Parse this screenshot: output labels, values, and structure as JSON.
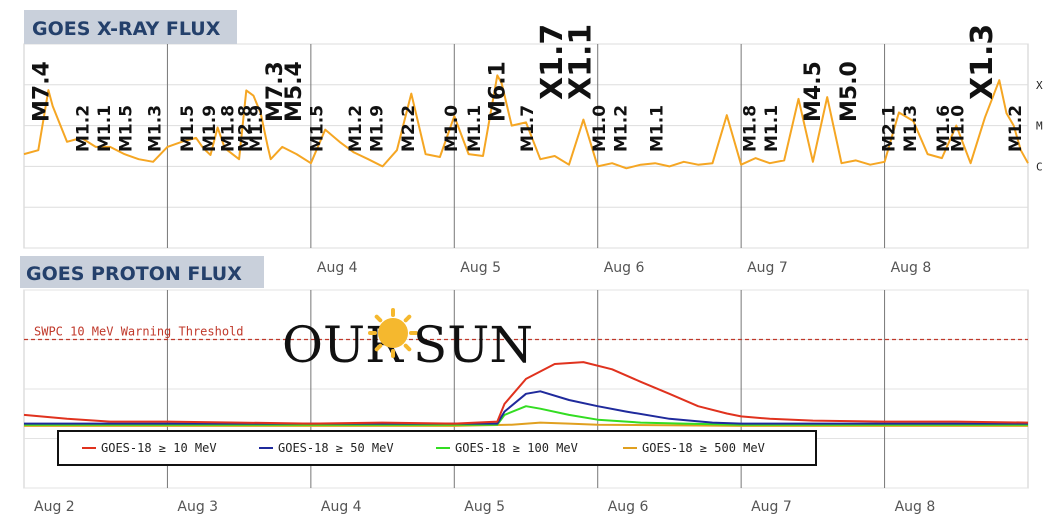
{
  "chart_data": [
    {
      "type": "line",
      "title": "GOES X-RAY FLUX",
      "x_labels": [
        "Aug 4",
        "Aug 5",
        "Aug 6",
        "Aug 7",
        "Aug 8"
      ],
      "y_scale": "log",
      "class_labels": [
        "X",
        "M",
        "C"
      ],
      "grid": true,
      "series": [
        {
          "color": "#f5a623",
          "x": [
            2.0,
            2.1,
            2.17,
            2.2,
            2.3,
            2.4,
            2.5,
            2.6,
            2.7,
            2.8,
            2.9,
            3.0,
            3.1,
            3.2,
            3.25,
            3.3,
            3.35,
            3.4,
            3.5,
            3.55,
            3.6,
            3.65,
            3.7,
            3.72,
            3.8,
            3.9,
            4.0,
            4.1,
            4.2,
            4.3,
            4.4,
            4.5,
            4.6,
            4.7,
            4.8,
            4.9,
            5.0,
            5.1,
            5.2,
            5.3,
            5.33,
            5.4,
            5.5,
            5.6,
            5.7,
            5.8,
            5.9,
            6.0,
            6.1,
            6.2,
            6.3,
            6.4,
            6.5,
            6.6,
            6.7,
            6.8,
            6.9,
            7.0,
            7.1,
            7.2,
            7.3,
            7.4,
            7.5,
            7.6,
            7.7,
            7.8,
            7.9,
            8.0,
            8.1,
            8.2,
            8.3,
            8.4,
            8.5,
            8.6,
            8.7,
            8.8,
            8.85,
            8.9,
            8.95,
            9.0
          ],
          "y": [
            2e-06,
            2.5e-06,
            7.4e-05,
            3e-05,
            4e-06,
            5e-06,
            3e-06,
            3e-06,
            2e-06,
            1.5e-06,
            1.3e-06,
            3e-06,
            4e-06,
            5e-06,
            2.8e-06,
            1.9e-06,
            9e-06,
            2.8e-06,
            1.5e-06,
            7.3e-05,
            5.4e-05,
            2e-05,
            3e-06,
            1.5e-06,
            3e-06,
            2e-06,
            1.2e-06,
            8e-06,
            4e-06,
            2.2e-06,
            1.5e-06,
            1e-06,
            2.5e-06,
            6.1e-05,
            2e-06,
            1.7e-06,
            1.7e-05,
            2e-06,
            1.8e-06,
            0.00017,
            0.00011,
            1e-05,
            1.2e-05,
            1.5e-06,
            1.8e-06,
            1.1e-06,
            1.4e-05,
            1e-06,
            1.2e-06,
            9e-07,
            1.1e-06,
            1.2e-06,
            1e-06,
            1.3e-06,
            1.1e-06,
            1.2e-06,
            1.8e-05,
            1.1e-06,
            1.6e-06,
            1.2e-06,
            1.4e-06,
            4.5e-05,
            1.3e-06,
            5e-05,
            1.2e-06,
            1.4e-06,
            1.1e-06,
            1.3e-06,
            2.1e-05,
            1.3e-05,
            2e-06,
            1.6e-06,
            1e-05,
            1.2e-06,
            1.6e-05,
            0.00013,
            2e-05,
            1e-05,
            2.5e-06,
            1.2e-06
          ]
        }
      ],
      "flare_labels": [
        {
          "label": "M7.4",
          "x": 2.17
        },
        {
          "label": "M1.2",
          "x": 2.45
        },
        {
          "label": "M1.1",
          "x": 2.6
        },
        {
          "label": "M1.5",
          "x": 2.75
        },
        {
          "label": "M1.3",
          "x": 2.95
        },
        {
          "label": "M1.5",
          "x": 3.18
        },
        {
          "label": "M1.9",
          "x": 3.33
        },
        {
          "label": "M1.8",
          "x": 3.46
        },
        {
          "label": "M2.8",
          "x": 3.58
        },
        {
          "label": "M1.9",
          "x": 3.66
        },
        {
          "label": "M7.3",
          "x": 3.8
        },
        {
          "label": "M5.4",
          "x": 3.93
        },
        {
          "label": "M1.5",
          "x": 4.08
        },
        {
          "label": "M1.2",
          "x": 4.35
        },
        {
          "label": "M1.9",
          "x": 4.5
        },
        {
          "label": "M2.2",
          "x": 4.72
        },
        {
          "label": "M1.0",
          "x": 5.02
        },
        {
          "label": "M1.1",
          "x": 5.18
        },
        {
          "label": "M6.1",
          "x": 5.35
        },
        {
          "label": "M1.7",
          "x": 5.55
        },
        {
          "label": "X1.7",
          "x": 5.75
        },
        {
          "label": "X1.1",
          "x": 5.95
        },
        {
          "label": "M1.0",
          "x": 6.05
        },
        {
          "label": "M1.2",
          "x": 6.2
        },
        {
          "label": "M1.1",
          "x": 6.45
        },
        {
          "label": "M1.8",
          "x": 7.1
        },
        {
          "label": "M1.1",
          "x": 7.25
        },
        {
          "label": "M4.5",
          "x": 7.55
        },
        {
          "label": "M5.0",
          "x": 7.8
        },
        {
          "label": "M2.1",
          "x": 8.07
        },
        {
          "label": "M1.3",
          "x": 8.22
        },
        {
          "label": "M1.6",
          "x": 8.45
        },
        {
          "label": "M1.0",
          "x": 8.55
        },
        {
          "label": "X1.3",
          "x": 8.75
        },
        {
          "label": "M1.2",
          "x": 8.95
        }
      ]
    },
    {
      "type": "line",
      "title": "GOES PROTON FLUX",
      "x_labels": [
        "Aug 2",
        "Aug 3",
        "Aug 4",
        "Aug 5",
        "Aug 6",
        "Aug 7",
        "Aug 8"
      ],
      "y_scale": "log",
      "threshold": {
        "label": "SWPC 10 MeV Warning Threshold",
        "value": 10,
        "color": "#c0392b"
      },
      "legend_position": "bottom-left",
      "grid": true,
      "series": [
        {
          "name": "GOES-18 ≥ 10 MeV",
          "color": "#e0321e",
          "x": [
            2.0,
            2.3,
            2.6,
            3.0,
            3.5,
            4.0,
            4.5,
            5.0,
            5.3,
            5.35,
            5.5,
            5.7,
            5.9,
            6.1,
            6.3,
            6.5,
            6.7,
            6.9,
            7.0,
            7.2,
            7.5,
            8.0,
            8.5,
            9.0
          ],
          "y": [
            0.3,
            0.25,
            0.22,
            0.22,
            0.21,
            0.2,
            0.21,
            0.2,
            0.22,
            0.5,
            1.6,
            3.2,
            3.5,
            2.5,
            1.4,
            0.8,
            0.45,
            0.32,
            0.28,
            0.25,
            0.23,
            0.22,
            0.22,
            0.21
          ]
        },
        {
          "name": "GOES-18 ≥ 50 MeV",
          "color": "#1f2a9c",
          "x": [
            2.0,
            3.0,
            4.0,
            5.0,
            5.3,
            5.35,
            5.5,
            5.6,
            5.8,
            6.0,
            6.2,
            6.5,
            6.8,
            7.0,
            8.0,
            9.0
          ],
          "y": [
            0.2,
            0.2,
            0.2,
            0.2,
            0.2,
            0.35,
            0.8,
            0.9,
            0.6,
            0.45,
            0.35,
            0.25,
            0.21,
            0.2,
            0.2,
            0.2
          ]
        },
        {
          "name": "GOES-18 ≥ 100 MeV",
          "color": "#33dd22",
          "x": [
            2.0,
            3.0,
            4.0,
            5.0,
            5.3,
            5.35,
            5.5,
            5.6,
            5.8,
            6.0,
            6.3,
            6.6,
            7.0,
            8.0,
            9.0
          ],
          "y": [
            0.19,
            0.19,
            0.19,
            0.19,
            0.19,
            0.3,
            0.45,
            0.4,
            0.3,
            0.24,
            0.21,
            0.2,
            0.19,
            0.19,
            0.19
          ]
        },
        {
          "name": "GOES-18 ≥ 500 MeV",
          "color": "#e0a020",
          "x": [
            2.0,
            3.0,
            4.0,
            5.0,
            5.4,
            5.6,
            5.8,
            6.0,
            7.0,
            8.0,
            9.0
          ],
          "y": [
            0.18,
            0.18,
            0.18,
            0.18,
            0.19,
            0.21,
            0.2,
            0.19,
            0.18,
            0.18,
            0.18
          ]
        }
      ]
    }
  ],
  "logo": {
    "left": "OUR",
    "right": "SUN"
  }
}
